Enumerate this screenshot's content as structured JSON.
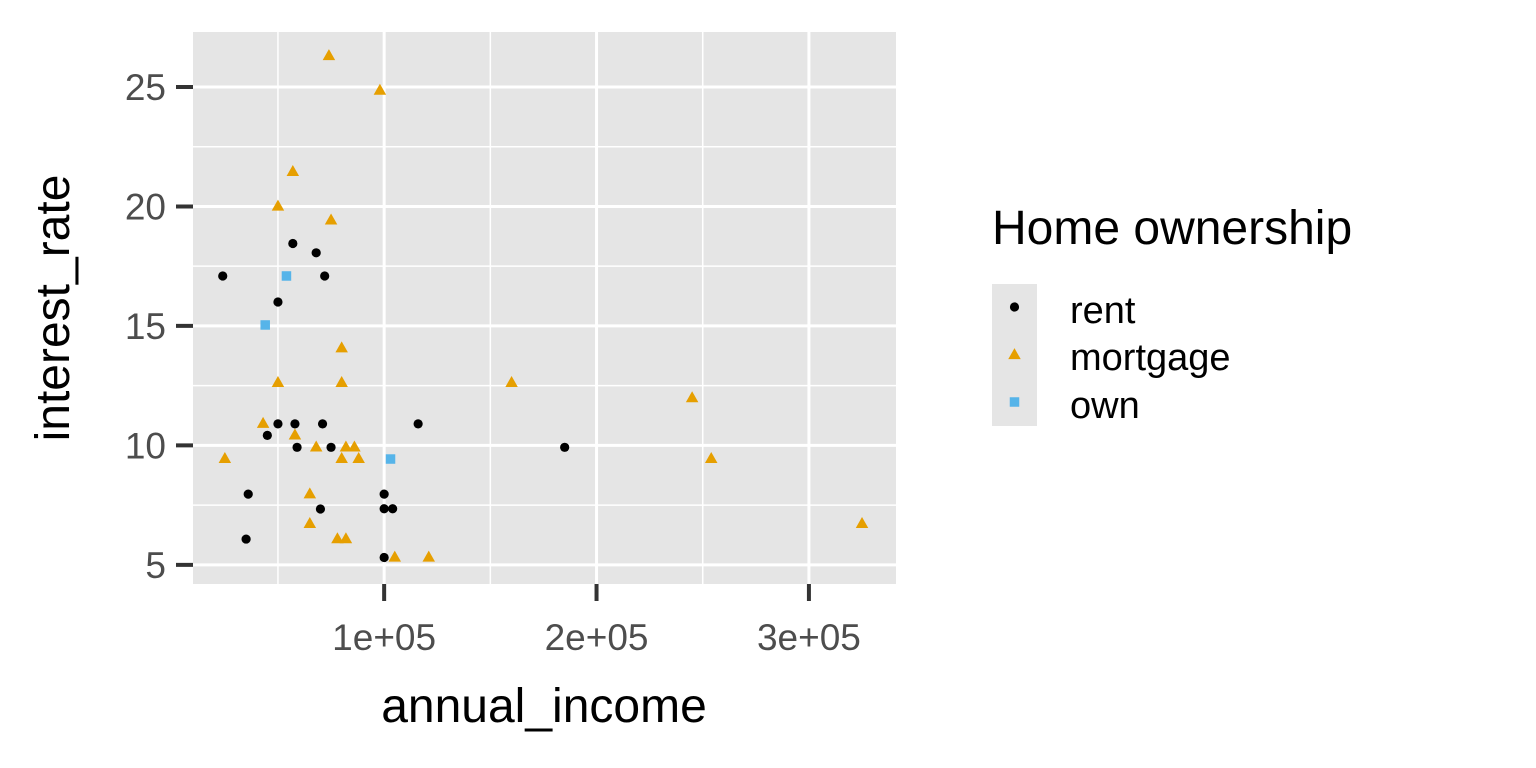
{
  "chart_data": {
    "type": "scatter",
    "xlabel": "annual_income",
    "ylabel": "interest_rate",
    "xlim": [
      10000,
      341000
    ],
    "ylim": [
      4.2,
      27.3
    ],
    "x_ticks": [
      100000,
      200000,
      300000
    ],
    "x_tick_labels": [
      "1e+05",
      "2e+05",
      "3e+05"
    ],
    "y_ticks": [
      5,
      10,
      15,
      20,
      25
    ],
    "y_tick_labels": [
      "5",
      "10",
      "15",
      "20",
      "25"
    ],
    "grid": true,
    "panel_background": "#e5e5e5",
    "grid_color": "#ffffff",
    "legend": {
      "title": "Home ownership",
      "position": "right"
    },
    "series": [
      {
        "name": "rent",
        "shape": "circle",
        "color": "#000000",
        "points": [
          [
            24000,
            17.09
          ],
          [
            35000,
            6.08
          ],
          [
            36000,
            7.96
          ],
          [
            50000,
            16.0
          ],
          [
            50000,
            10.9
          ],
          [
            45000,
            10.42
          ],
          [
            57000,
            18.45
          ],
          [
            58000,
            10.9
          ],
          [
            59000,
            9.92
          ],
          [
            68000,
            18.06
          ],
          [
            70000,
            7.34
          ],
          [
            71000,
            10.9
          ],
          [
            72000,
            17.09
          ],
          [
            75000,
            9.92
          ],
          [
            100000,
            7.96
          ],
          [
            100000,
            7.35
          ],
          [
            104000,
            7.35
          ],
          [
            100000,
            5.31
          ],
          [
            116000,
            10.9
          ],
          [
            185000,
            9.92
          ]
        ]
      },
      {
        "name": "mortgage",
        "shape": "triangle",
        "color": "#e69f00",
        "points": [
          [
            74000,
            26.3
          ],
          [
            98000,
            24.85
          ],
          [
            57000,
            21.45
          ],
          [
            50000,
            20.0
          ],
          [
            75000,
            19.42
          ],
          [
            80000,
            14.07
          ],
          [
            50000,
            12.62
          ],
          [
            80000,
            12.62
          ],
          [
            43000,
            10.91
          ],
          [
            58000,
            10.42
          ],
          [
            25000,
            9.44
          ],
          [
            68000,
            9.92
          ],
          [
            80000,
            9.44
          ],
          [
            82000,
            9.92
          ],
          [
            86000,
            9.92
          ],
          [
            88000,
            9.44
          ],
          [
            65000,
            7.96
          ],
          [
            65000,
            6.72
          ],
          [
            78000,
            6.08
          ],
          [
            82000,
            6.08
          ],
          [
            105000,
            5.31
          ],
          [
            121000,
            5.31
          ],
          [
            160000,
            12.62
          ],
          [
            245000,
            11.98
          ],
          [
            254000,
            9.44
          ],
          [
            325000,
            6.72
          ]
        ]
      },
      {
        "name": "own",
        "shape": "square",
        "color": "#56b4e9",
        "points": [
          [
            54000,
            17.09
          ],
          [
            44000,
            15.04
          ],
          [
            103000,
            9.43
          ]
        ]
      }
    ]
  }
}
